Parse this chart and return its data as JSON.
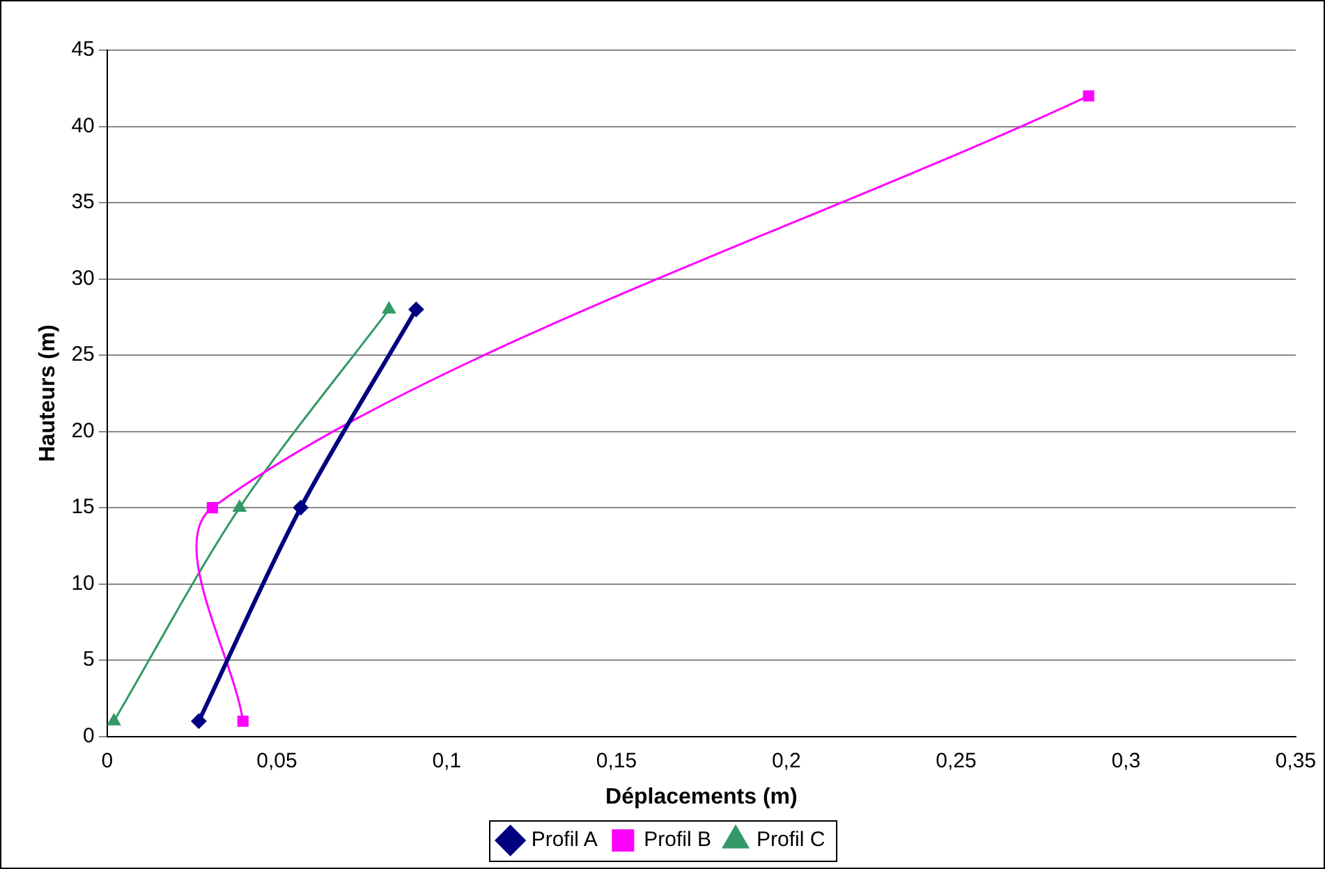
{
  "chart_data": {
    "type": "line",
    "xlabel": "Déplacements (m)",
    "ylabel": "Hauteurs (m)",
    "xlim": [
      0,
      0.35
    ],
    "xticks": [
      0,
      {
        "value": 0.05,
        "label": "0,05"
      },
      {
        "value": 0.1,
        "label": "0,1"
      },
      {
        "value": 0.15,
        "label": "0,15"
      },
      {
        "value": 0.2,
        "label": "0,2"
      },
      {
        "value": 0.25,
        "label": "0,25"
      },
      {
        "value": 0.3,
        "label": "0,3"
      },
      {
        "value": 0.35,
        "label": "0,35"
      }
    ],
    "ylim": [
      0,
      45
    ],
    "yticks": [
      0,
      5,
      10,
      15,
      20,
      25,
      30,
      35,
      40,
      45
    ],
    "grid": "y",
    "legend": "bottom",
    "series": [
      {
        "name": "Profil A",
        "color": "#000080",
        "marker": "diamond",
        "x": [
          0.027,
          0.057,
          0.091
        ],
        "values": [
          1,
          15,
          28
        ]
      },
      {
        "name": "Profil B",
        "color": "#ff00ff",
        "marker": "square",
        "x": [
          0.04,
          0.031,
          0.289
        ],
        "values": [
          1,
          15,
          42
        ]
      },
      {
        "name": "Profil C",
        "color": "#339966",
        "marker": "triangle",
        "x": [
          0.002,
          0.039,
          0.083
        ],
        "values": [
          1,
          15,
          28
        ]
      }
    ]
  }
}
